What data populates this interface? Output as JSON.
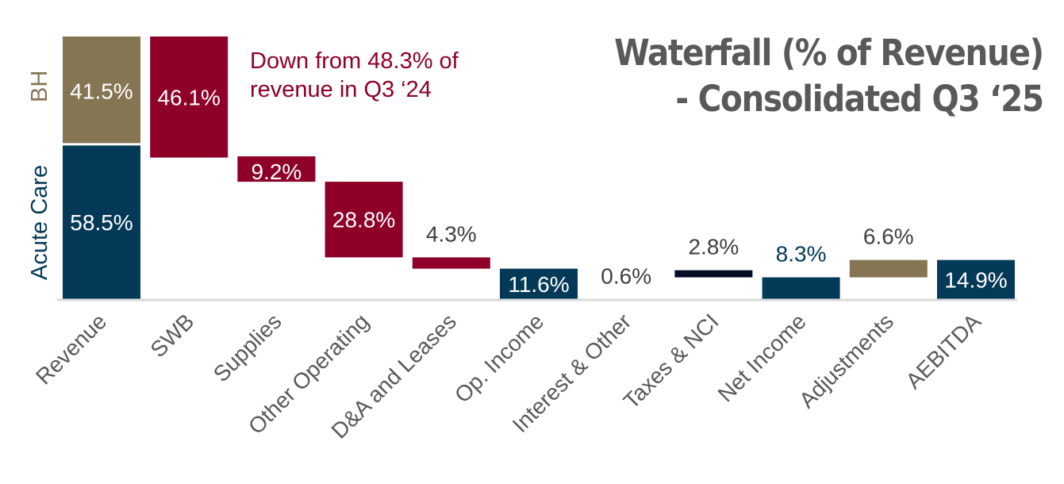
{
  "chart_data": {
    "type": "bar",
    "subtype": "waterfall",
    "title": "Waterfall (% of Revenue)",
    "subtitle": "- Consolidated Q3 ‘25",
    "annotation": "Down from 48.3% of revenue in Q3 ‘24",
    "categories": [
      "Revenue",
      "SWB",
      "Supplies",
      "Other Operating",
      "D&A and Leases",
      "Op. Income",
      "Interest & Other",
      "Taxes & NCI",
      "Net Income",
      "Adjustments",
      "AEBITDA"
    ],
    "bars": [
      {
        "category": "Revenue",
        "segments": [
          {
            "name": "Acute Care",
            "start": 0,
            "end": 58.5,
            "label": "58.5%",
            "color": "#043a58",
            "label_color": "#ffffff"
          },
          {
            "name": "BH",
            "start": 58.5,
            "end": 100,
            "label": "41.5%",
            "color": "#857552",
            "label_color": "#ffffff"
          }
        ]
      },
      {
        "category": "SWB",
        "start": 100,
        "end": 53.9,
        "value": -46.1,
        "label": "46.1%",
        "color": "#8e0028",
        "label_color": "#ffffff",
        "label_pos": "inside"
      },
      {
        "category": "Supplies",
        "start": 53.9,
        "end": 44.7,
        "value": -9.2,
        "label": "9.2%",
        "color": "#8e0028",
        "label_color": "#ffffff",
        "label_pos": "inside"
      },
      {
        "category": "Other Operating",
        "start": 44.7,
        "end": 15.9,
        "value": -28.8,
        "label": "28.8%",
        "color": "#8e0028",
        "label_color": "#ffffff",
        "label_pos": "inside"
      },
      {
        "category": "D&A and Leases",
        "start": 15.9,
        "end": 11.6,
        "value": -4.3,
        "label": "4.3%",
        "color": "#8e0028",
        "label_color": "#404040",
        "label_pos": "above"
      },
      {
        "category": "Op. Income",
        "start": 0,
        "end": 11.6,
        "value": 11.6,
        "label": "11.6%",
        "color": "#043a58",
        "label_color": "#ffffff",
        "label_pos": "inside"
      },
      {
        "category": "Interest & Other",
        "start": 11.6,
        "end": 11.0,
        "value": -0.6,
        "label": "0.6%",
        "color": "#ffffff",
        "label_color": "#404040",
        "label_pos": "above"
      },
      {
        "category": "Taxes & NCI",
        "start": 11.0,
        "end": 8.3,
        "value": -2.8,
        "label": "2.8%",
        "color": "#050d26",
        "label_color": "#404040",
        "label_pos": "above"
      },
      {
        "category": "Net Income",
        "start": 0,
        "end": 8.3,
        "value": 8.3,
        "label": "8.3%",
        "color": "#043a58",
        "label_color": "#043a58",
        "label_pos": "above"
      },
      {
        "category": "Adjustments",
        "start": 8.3,
        "end": 14.9,
        "value": 6.6,
        "label": "6.6%",
        "color": "#857552",
        "label_color": "#404040",
        "label_pos": "above"
      },
      {
        "category": "AEBITDA",
        "start": 0,
        "end": 14.9,
        "value": 14.9,
        "label": "14.9%",
        "color": "#043a58",
        "label_color": "#ffffff",
        "label_pos": "inside"
      }
    ],
    "segment_legend": [
      {
        "name": "BH",
        "color": "#857552"
      },
      {
        "name": "Acute Care",
        "color": "#043a58"
      }
    ],
    "ylim": [
      0,
      100
    ],
    "xlabel": "",
    "ylabel": "",
    "grid": false,
    "tick_label_color": "#595959"
  }
}
